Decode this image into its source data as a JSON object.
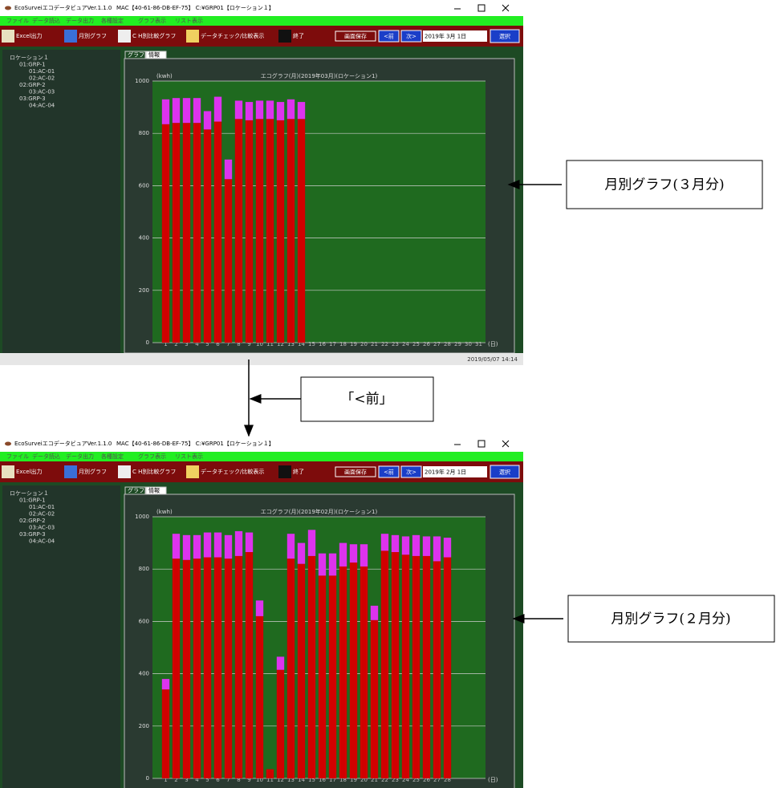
{
  "windows": [
    {
      "app_title": "EcoSurveiエコデータビュアVer.1.1.0",
      "mac": "MAC【40-61-86-DB-EF-75】 C:¥GRP01【ロケーション１】",
      "menu": [
        "ファイル",
        "データ読込",
        "データ出力",
        "各種設定",
        "グラフ表示",
        "リスト表示"
      ],
      "toolbar": [
        "Excel出力",
        "月別グラフ",
        "C H別比較グラフ",
        "データチェック/比較表示",
        "終了"
      ],
      "save": "画面保存",
      "prev": "<前",
      "next": "次>",
      "date": "2019年 3月 1日",
      "select": "選択",
      "tree": {
        "label": "ロケーション１",
        "children": [
          {
            "label": "01:GRP-1",
            "children": [
              {
                "label": "01:AC-01"
              },
              {
                "label": "02:AC-02"
              }
            ]
          },
          {
            "label": "02:GRP-2",
            "children": [
              {
                "label": "03:AC-03"
              }
            ]
          },
          {
            "label": "03:GRP-3",
            "children": [
              {
                "label": "04:AC-04"
              }
            ]
          }
        ]
      },
      "tabs": [
        "グラフ",
        "情報"
      ],
      "status": "2019/05/07 14:14",
      "chart": {
        "type": "bar",
        "stacked": true,
        "title": "エコグラフ(月)(2019年03月)(ロケーション1)",
        "y_label": "(kwh)",
        "x_label": "(日)",
        "categories": [
          1,
          2,
          3,
          4,
          5,
          6,
          7,
          8,
          9,
          10,
          11,
          12,
          13,
          14,
          15,
          16,
          17,
          18,
          19,
          20,
          21,
          22,
          23,
          24,
          25,
          26,
          27,
          28,
          29,
          30,
          31
        ],
        "series": [
          {
            "color": "#d10000",
            "values": [
              835,
              840,
              840,
              840,
              815,
              845,
              625,
              855,
              850,
              855,
              855,
              850,
              855,
              855,
              null,
              null,
              null,
              null,
              null,
              null,
              null,
              null,
              null,
              null,
              null,
              null,
              null,
              null,
              null,
              null,
              null
            ]
          },
          {
            "color": "#dd33ee",
            "values": [
              95,
              95,
              95,
              95,
              70,
              95,
              75,
              70,
              70,
              70,
              70,
              70,
              75,
              65,
              null,
              null,
              null,
              null,
              null,
              null,
              null,
              null,
              null,
              null,
              null,
              null,
              null,
              null,
              null,
              null,
              null
            ]
          }
        ],
        "ylim": [
          0,
          1000
        ],
        "yticks": [
          0,
          200,
          400,
          600,
          800,
          1000
        ],
        "grid": true
      }
    },
    {
      "app_title": "EcoSurveiエコデータビュアVer.1.1.0",
      "mac": "MAC【40-61-86-DB-EF-75】 C:¥GRP01【ロケーション１】",
      "menu": [
        "ファイル",
        "データ読込",
        "データ出力",
        "各種設定",
        "グラフ表示",
        "リスト表示"
      ],
      "toolbar": [
        "Excel出力",
        "月別グラフ",
        "C H別比較グラフ",
        "データチェック/比較表示",
        "終了"
      ],
      "save": "画面保存",
      "prev": "<前",
      "next": "次>",
      "date": "2019年 2月 1日",
      "select": "選択",
      "tree": {
        "label": "ロケーション１",
        "children": [
          {
            "label": "01:GRP-1",
            "children": [
              {
                "label": "01:AC-01"
              },
              {
                "label": "02:AC-02"
              }
            ]
          },
          {
            "label": "02:GRP-2",
            "children": [
              {
                "label": "03:AC-03"
              }
            ]
          },
          {
            "label": "03:GRP-3",
            "children": [
              {
                "label": "04:AC-04"
              }
            ]
          }
        ]
      },
      "tabs": [
        "グラフ",
        "情報"
      ],
      "status": "2019/05/07 14:14",
      "chart": {
        "type": "bar",
        "stacked": true,
        "title": "エコグラフ(月)(2019年02月)(ロケーション1)",
        "y_label": "(kwh)",
        "x_label": "(日)",
        "categories": [
          1,
          2,
          3,
          4,
          5,
          6,
          7,
          8,
          9,
          10,
          11,
          12,
          13,
          14,
          15,
          16,
          17,
          18,
          19,
          20,
          21,
          22,
          23,
          24,
          25,
          26,
          27,
          28
        ],
        "series": [
          {
            "color": "#d10000",
            "values": [
              340,
              840,
              835,
              840,
              845,
              845,
              840,
              850,
              865,
              620,
              35,
              415,
              840,
              820,
              850,
              775,
              775,
              810,
              825,
              810,
              605,
              870,
              865,
              855,
              850,
              850,
              830,
              845
            ]
          },
          {
            "color": "#dd33ee",
            "values": [
              40,
              95,
              95,
              90,
              95,
              95,
              90,
              95,
              75,
              60,
              0,
              50,
              95,
              80,
              100,
              85,
              85,
              90,
              70,
              85,
              55,
              65,
              65,
              70,
              80,
              75,
              95,
              75
            ]
          }
        ],
        "ylim": [
          0,
          1000
        ],
        "yticks": [
          0,
          200,
          400,
          600,
          800,
          1000
        ],
        "grid": true
      }
    }
  ],
  "callouts": [
    "月別グラフ(３月分)",
    "「<前」",
    "月別グラフ(２月分)"
  ]
}
